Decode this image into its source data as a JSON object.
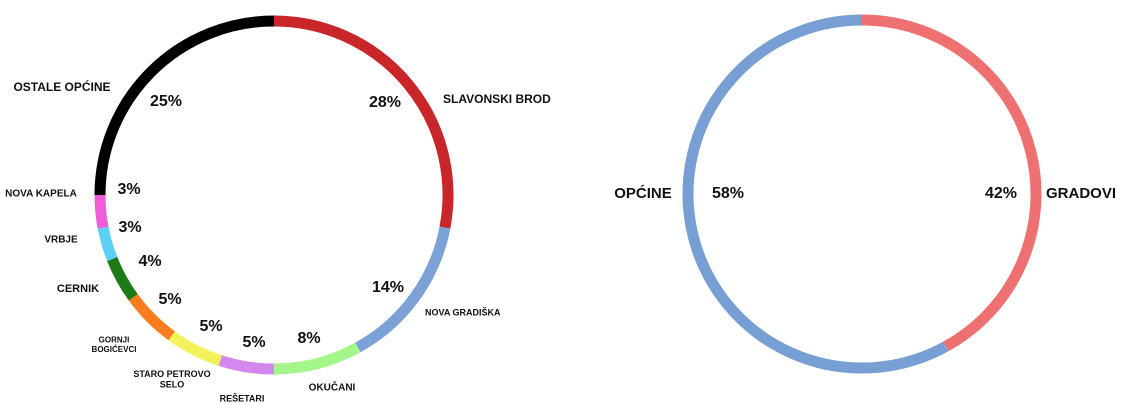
{
  "chart_data": [
    {
      "type": "pie",
      "style": "ring",
      "slices": [
        {
          "label": "SLAVONSKI BROD",
          "value": 28,
          "display": "28%",
          "color": "#c9262a"
        },
        {
          "label": "NOVA GRADIŠKA",
          "value": 14,
          "display": "14%",
          "color": "#7ba1d6"
        },
        {
          "label": "OKUČANI",
          "value": 8,
          "display": "8%",
          "color": "#a4f58a"
        },
        {
          "label": "REŠETARI",
          "value": 5,
          "display": "5%",
          "color": "#d487ef"
        },
        {
          "label": "STARO PETROVO SELO",
          "value": 5,
          "display": "5%",
          "color": "#f3f25a"
        },
        {
          "label": "GORNJI BOGIĆEVCI",
          "value": 5,
          "display": "5%",
          "color": "#f97d1c"
        },
        {
          "label": "CERNIK",
          "value": 4,
          "display": "4%",
          "color": "#1c7b18"
        },
        {
          "label": "VRBJE",
          "value": 3,
          "display": "3%",
          "color": "#5ccff5"
        },
        {
          "label": "NOVA KAPELA",
          "value": 3,
          "display": "3%",
          "color": "#ef5ed8"
        },
        {
          "label": "OSTALE OPĆINE",
          "value": 25,
          "display": "25%",
          "color": "#000000"
        }
      ]
    },
    {
      "type": "pie",
      "style": "ring",
      "slices": [
        {
          "label": "GRADOVI",
          "value": 42,
          "display": "42%",
          "color": "#ee7070"
        },
        {
          "label": "OPĆINE",
          "value": 58,
          "display": "58%",
          "color": "#789fd4"
        }
      ]
    }
  ]
}
